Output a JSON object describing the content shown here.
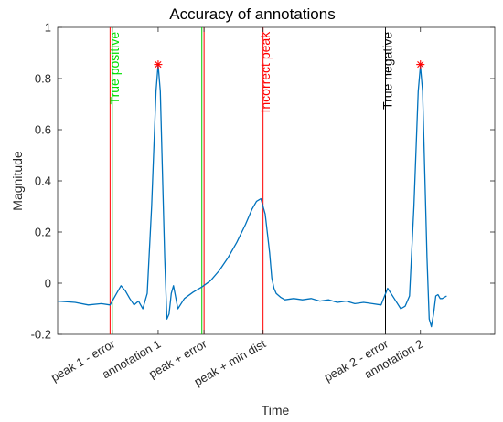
{
  "chart_data": {
    "type": "line",
    "title": "Accuracy of annotations",
    "xlabel": "Time",
    "ylabel": "Magnitude",
    "xlim": [
      0,
      100
    ],
    "ylim": [
      -0.2,
      1
    ],
    "yticks": [
      -0.2,
      0,
      0.2,
      0.4,
      0.6,
      0.8,
      1
    ],
    "ytick_labels": [
      "-0.2",
      "0",
      "0.2",
      "0.4",
      "0.6",
      "0.8",
      "1"
    ],
    "xticks": [
      {
        "x": 12.5,
        "label": "peak 1 - error"
      },
      {
        "x": 23.0,
        "label": "annotation 1"
      },
      {
        "x": 33.5,
        "label": "peak + error"
      },
      {
        "x": 47.0,
        "label": "peak + min dist"
      },
      {
        "x": 75.0,
        "label": "peak 2 - error"
      },
      {
        "x": 83.0,
        "label": "annotation 2"
      }
    ],
    "grid": false,
    "series": [
      {
        "color": "#0072BD",
        "x": [
          0,
          4,
          7,
          10,
          12,
          13.5,
          14.5,
          15.5,
          16.5,
          17.5,
          18.5,
          19.5,
          20.5,
          21.5,
          22.5,
          23.0,
          23.5,
          24.5,
          25,
          25.5,
          26,
          26.5,
          27.5,
          29,
          31,
          33,
          35,
          37,
          39,
          41,
          43,
          44.5,
          45.5,
          46.5,
          47.5,
          48.5,
          49,
          49.5,
          50,
          51,
          52,
          54,
          56,
          58,
          60,
          62,
          64,
          66,
          68,
          70,
          72,
          74,
          75.5,
          77,
          78.5,
          79.5,
          80.5,
          81.5,
          82.5,
          83.0,
          83.5,
          84.5,
          85,
          85.5,
          86,
          86.5,
          87,
          87.5,
          88,
          89
        ],
        "y": [
          -0.07,
          -0.075,
          -0.085,
          -0.08,
          -0.085,
          -0.04,
          -0.01,
          -0.03,
          -0.06,
          -0.085,
          -0.07,
          -0.1,
          -0.04,
          0.3,
          0.75,
          0.855,
          0.75,
          0.1,
          -0.14,
          -0.12,
          -0.04,
          -0.01,
          -0.1,
          -0.06,
          -0.035,
          -0.015,
          0.01,
          0.05,
          0.1,
          0.16,
          0.23,
          0.29,
          0.32,
          0.33,
          0.27,
          0.12,
          0.02,
          -0.02,
          -0.04,
          -0.055,
          -0.065,
          -0.06,
          -0.065,
          -0.06,
          -0.07,
          -0.065,
          -0.075,
          -0.07,
          -0.08,
          -0.075,
          -0.08,
          -0.085,
          -0.02,
          -0.06,
          -0.1,
          -0.09,
          -0.05,
          0.3,
          0.75,
          0.85,
          0.75,
          0.1,
          -0.14,
          -0.17,
          -0.12,
          -0.05,
          -0.045,
          -0.06,
          -0.06,
          -0.05
        ]
      }
    ],
    "markers": [
      {
        "x": 23.0,
        "y": 0.855,
        "symbol": "*",
        "color": "#ff0000"
      },
      {
        "x": 83.0,
        "y": 0.855,
        "symbol": "*",
        "color": "#ff0000"
      }
    ],
    "vlines": [
      {
        "x": 12.0,
        "color": "#ff0000"
      },
      {
        "x": 12.5,
        "color": "#00cc00"
      },
      {
        "x": 33.0,
        "color": "#00cc00"
      },
      {
        "x": 33.5,
        "color": "#ff0000"
      },
      {
        "x": 47.0,
        "color": "#ff0000"
      },
      {
        "x": 75.0,
        "color": "#000000"
      }
    ],
    "annotations": [
      {
        "text": "True positive",
        "x": 14.0,
        "y": 0.99,
        "color": "#00e000",
        "rotation": -90
      },
      {
        "text": "Incorrect peak",
        "x": 48.5,
        "y": 0.99,
        "color": "#ff0000",
        "rotation": -90
      },
      {
        "text": "True negative",
        "x": 76.5,
        "y": 0.99,
        "color": "#000000",
        "rotation": -90
      }
    ]
  }
}
